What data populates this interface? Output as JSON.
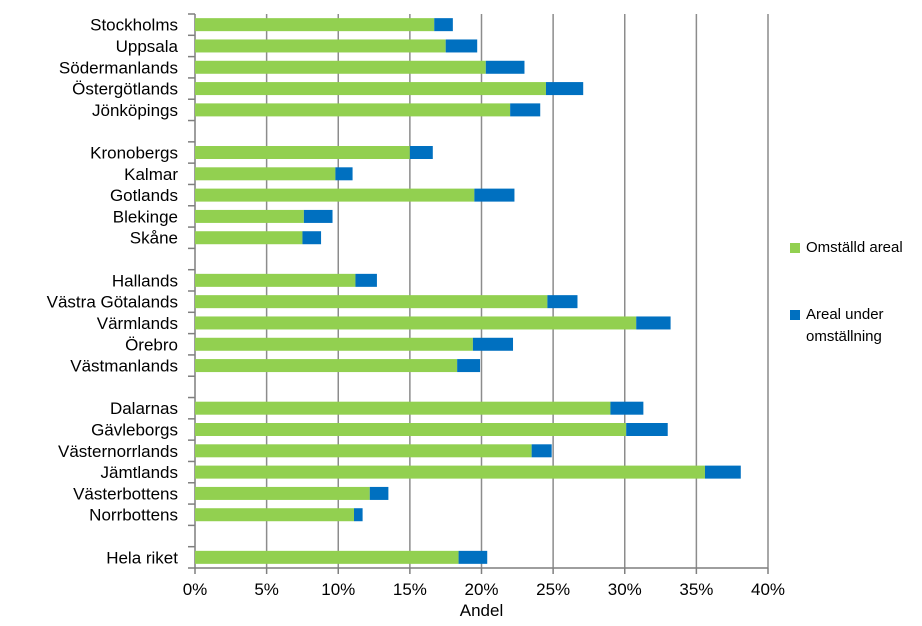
{
  "chart_data": {
    "type": "bar",
    "orientation": "horizontal",
    "stacked": true,
    "xlabel": "Andel",
    "xlim": [
      0,
      40
    ],
    "x_ticks": [
      0,
      5,
      10,
      15,
      20,
      25,
      30,
      35,
      40
    ],
    "x_tick_labels": [
      "0%",
      "5%",
      "10%",
      "15%",
      "20%",
      "25%",
      "30%",
      "35%",
      "40%"
    ],
    "grid": "vertical",
    "legend_position": "right",
    "categories": [
      "Stockholms",
      "Uppsala",
      "Södermanlands",
      "Östergötlands",
      "Jönköpings",
      "",
      "Kronobergs",
      "Kalmar",
      "Gotlands",
      "Blekinge",
      "Skåne",
      "",
      "Hallands",
      "Västra Götalands",
      "Värmlands",
      "Örebro",
      "Västmanlands",
      "",
      "Dalarnas",
      "Gävleborgs",
      "Västernorrlands",
      "Jämtlands",
      "Västerbottens",
      "Norrbottens",
      "",
      "Hela riket"
    ],
    "series": [
      {
        "name": "Omställd areal",
        "color": "#92D050",
        "values": [
          16.7,
          17.5,
          20.3,
          24.5,
          22.0,
          null,
          15.0,
          9.8,
          19.5,
          7.6,
          7.5,
          null,
          11.2,
          24.6,
          30.8,
          19.4,
          18.3,
          null,
          29.0,
          30.1,
          23.5,
          35.6,
          12.2,
          11.1,
          null,
          18.4
        ]
      },
      {
        "name": "Areal under omställning",
        "color": "#0070C0",
        "values": [
          1.3,
          2.2,
          2.7,
          2.6,
          2.1,
          null,
          1.6,
          1.2,
          2.8,
          2.0,
          1.3,
          null,
          1.5,
          2.1,
          2.4,
          2.8,
          1.6,
          null,
          2.3,
          2.9,
          1.4,
          2.5,
          1.3,
          0.6,
          null,
          2.0
        ]
      }
    ],
    "legend": [
      {
        "lines": [
          "Omställd areal"
        ],
        "color": "#92D050"
      },
      {
        "lines": [
          "Areal under",
          "omställning"
        ],
        "color": "#0070C0"
      }
    ]
  }
}
